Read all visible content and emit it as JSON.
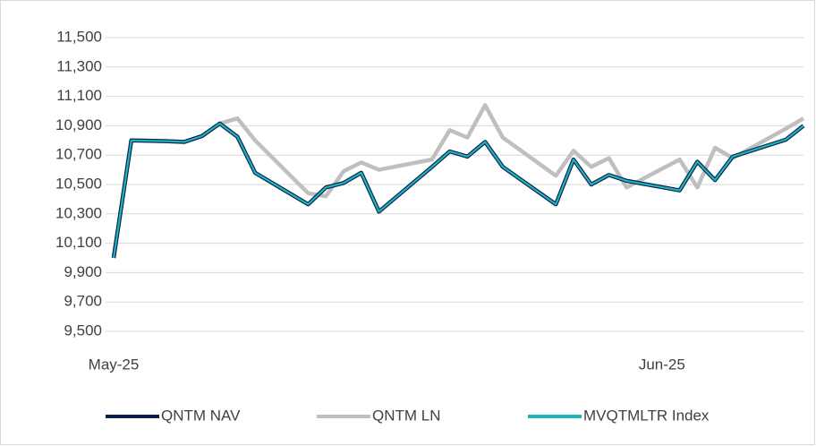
{
  "chart_data": {
    "type": "line",
    "x": [
      0,
      1,
      3,
      4,
      5,
      6,
      7,
      8,
      11,
      12,
      13,
      14,
      15,
      18,
      19,
      20,
      21,
      22,
      25,
      26,
      27,
      28,
      29,
      32,
      33,
      34,
      35,
      38,
      39
    ],
    "series": [
      {
        "name": "QNTM LN",
        "color": "#bfbfbf",
        "values": [
          10000,
          10800,
          10795,
          10790,
          10830,
          10915,
          10950,
          10800,
          10440,
          10420,
          10590,
          10650,
          10600,
          10670,
          10870,
          10820,
          11040,
          10820,
          10560,
          10730,
          10620,
          10680,
          10480,
          10670,
          10480,
          10750,
          10680,
          10880,
          10950
        ]
      },
      {
        "name": "QNTM NAV",
        "color": "#0b1f4d",
        "values": [
          10000,
          10800,
          10795,
          10790,
          10830,
          10915,
          10825,
          10580,
          10365,
          10480,
          10510,
          10580,
          10315,
          10620,
          10725,
          10690,
          10790,
          10620,
          10365,
          10670,
          10500,
          10565,
          10525,
          10460,
          10655,
          10530,
          10690,
          10805,
          10900
        ]
      },
      {
        "name": "MVQTMLTR Index",
        "color": "#1cb5b9",
        "values": [
          10000,
          10800,
          10795,
          10790,
          10830,
          10915,
          10825,
          10580,
          10365,
          10480,
          10510,
          10580,
          10315,
          10620,
          10725,
          10690,
          10790,
          10620,
          10365,
          10670,
          10500,
          10565,
          10525,
          10460,
          10655,
          10530,
          10690,
          10805,
          10900
        ]
      }
    ],
    "xlim": [
      0,
      39
    ],
    "xticks": [
      {
        "value": 0,
        "label": "May-25"
      },
      {
        "value": 31,
        "label": "Jun-25"
      }
    ],
    "ylim": [
      9500,
      11500
    ],
    "yticks": [
      {
        "value": 9500,
        "label": "9,500"
      },
      {
        "value": 9700,
        "label": "9,700"
      },
      {
        "value": 9900,
        "label": "9,900"
      },
      {
        "value": 10100,
        "label": "10,100"
      },
      {
        "value": 10300,
        "label": "10,300"
      },
      {
        "value": 10500,
        "label": "10,500"
      },
      {
        "value": 10700,
        "label": "10,700"
      },
      {
        "value": 10900,
        "label": "10,900"
      },
      {
        "value": 11100,
        "label": "11,100"
      },
      {
        "value": 11300,
        "label": "11,300"
      },
      {
        "value": 11500,
        "label": "11,500"
      }
    ],
    "grid": true,
    "legend": "bottom",
    "legend_order": [
      "QNTM NAV",
      "QNTM LN",
      "MVQTMLTR Index"
    ]
  }
}
